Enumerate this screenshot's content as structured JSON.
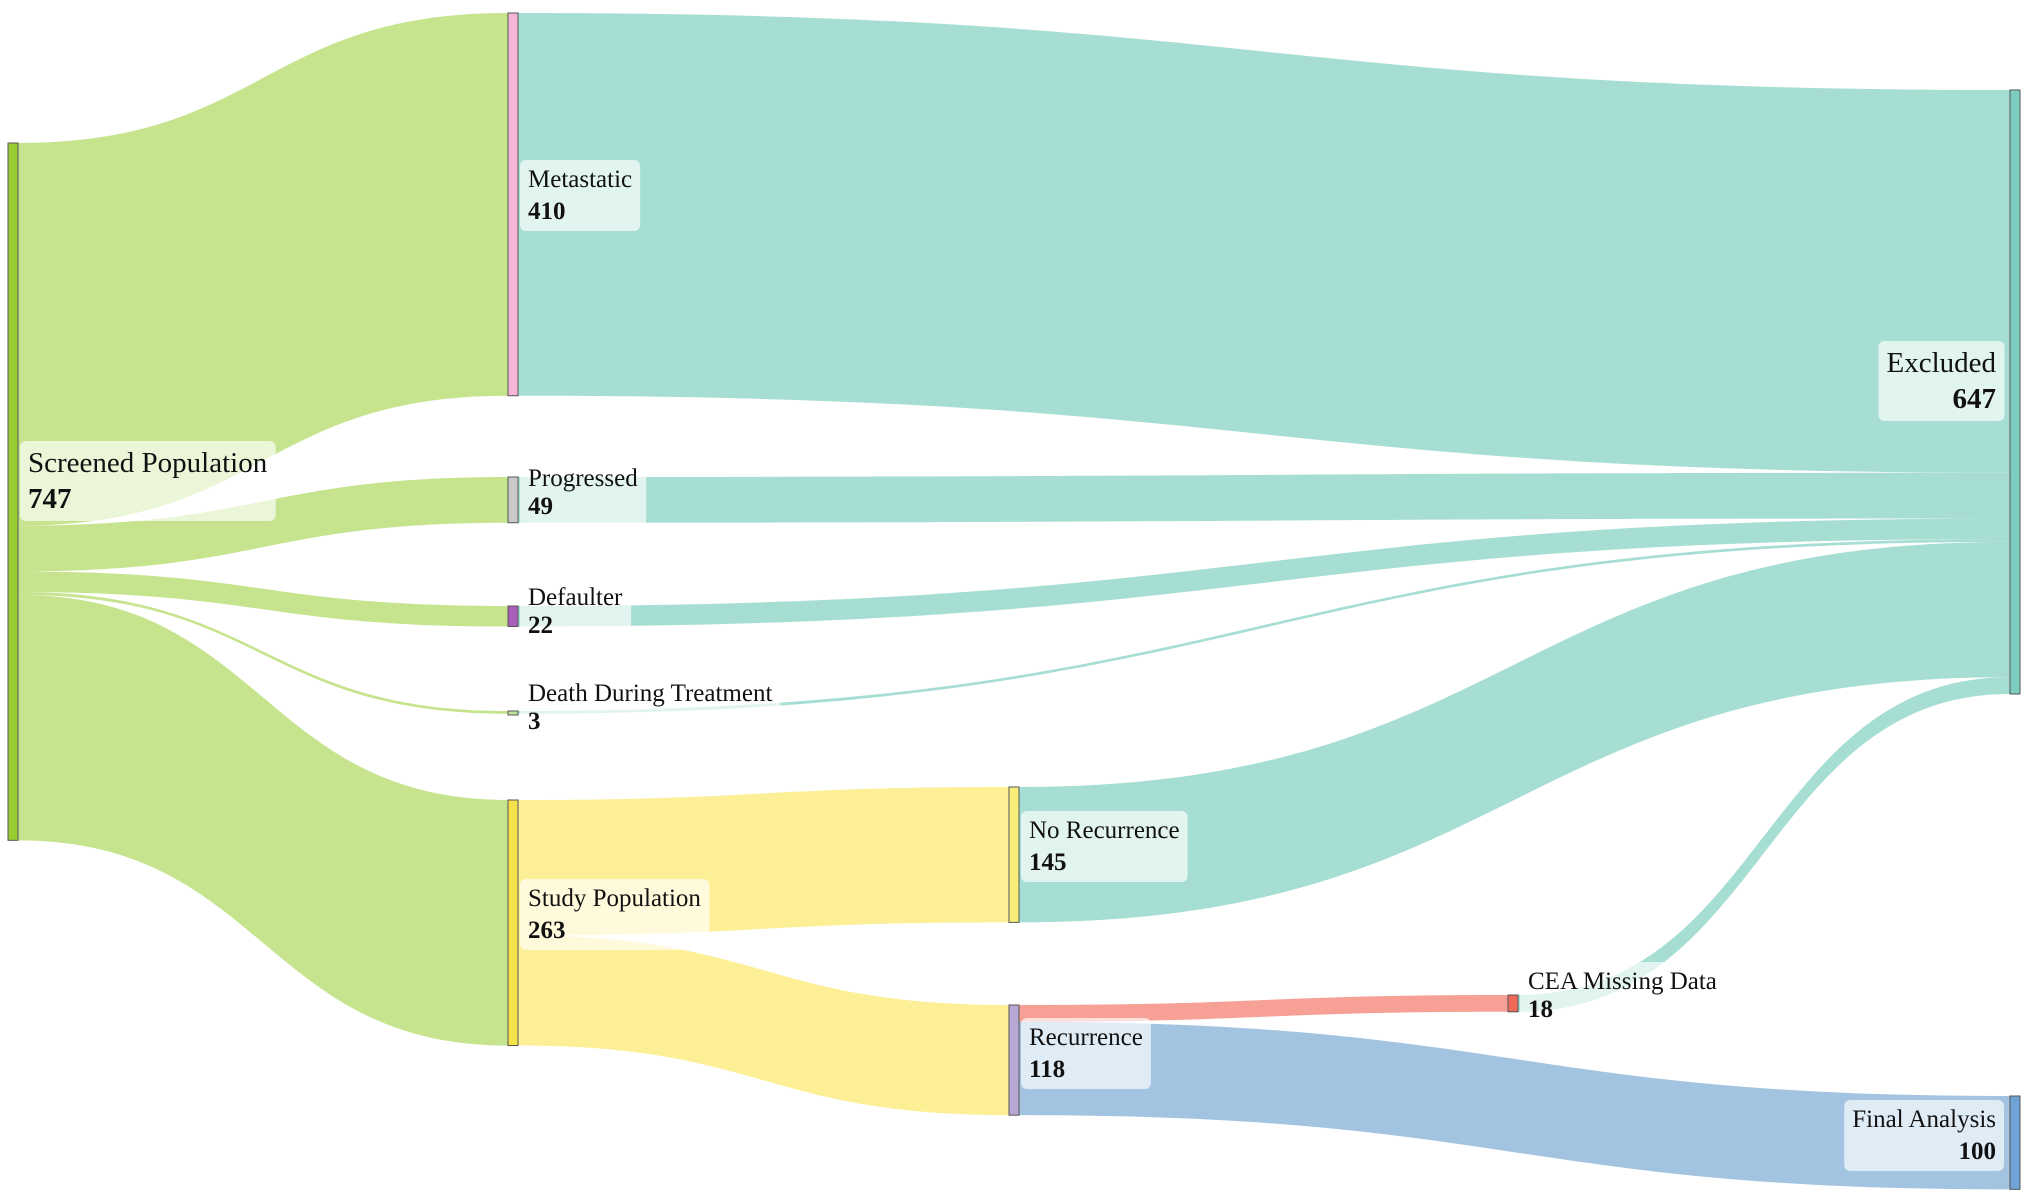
{
  "chart_data": {
    "type": "sankey",
    "nodes": [
      {
        "id": "screened",
        "name": "Screened Population",
        "value": 747,
        "color": "#9acd32"
      },
      {
        "id": "metastatic",
        "name": "Metastatic",
        "value": 410,
        "color": "#f3b6d6"
      },
      {
        "id": "progressed",
        "name": "Progressed",
        "value": 49,
        "color": "#c9c9c9"
      },
      {
        "id": "defaulter",
        "name": "Defaulter",
        "value": 22,
        "color": "#a95fb8"
      },
      {
        "id": "death",
        "name": "Death During Treatment",
        "value": 3,
        "color": "#bfe39a"
      },
      {
        "id": "study",
        "name": "Study Population",
        "value": 263,
        "color": "#f6e24a"
      },
      {
        "id": "no_recurrence",
        "name": "No Recurrence",
        "value": 145,
        "color": "#f9ee7a"
      },
      {
        "id": "recurrence",
        "name": "Recurrence",
        "value": 118,
        "color": "#b7a9d3"
      },
      {
        "id": "cea_missing",
        "name": "CEA Missing Data",
        "value": 18,
        "color": "#f06a5a"
      },
      {
        "id": "excluded",
        "name": "Excluded",
        "value": 647,
        "color": "#7ccfc0"
      },
      {
        "id": "final",
        "name": "Final Analysis",
        "value": 100,
        "color": "#6fa2d6"
      }
    ],
    "links": [
      {
        "source": "screened",
        "target": "metastatic",
        "value": 410,
        "color": "#c5e48d"
      },
      {
        "source": "screened",
        "target": "progressed",
        "value": 49,
        "color": "#c5e48d"
      },
      {
        "source": "screened",
        "target": "defaulter",
        "value": 22,
        "color": "#c5e48d"
      },
      {
        "source": "screened",
        "target": "death",
        "value": 3,
        "color": "#c5e48d"
      },
      {
        "source": "screened",
        "target": "study",
        "value": 263,
        "color": "#c5e48d"
      },
      {
        "source": "metastatic",
        "target": "excluded",
        "value": 410,
        "color": "#a7ded3"
      },
      {
        "source": "progressed",
        "target": "excluded",
        "value": 49,
        "color": "#a7ded3"
      },
      {
        "source": "defaulter",
        "target": "excluded",
        "value": 22,
        "color": "#a7ded3"
      },
      {
        "source": "death",
        "target": "excluded",
        "value": 3,
        "color": "#a7ded3"
      },
      {
        "source": "study",
        "target": "no_recurrence",
        "value": 145,
        "color": "#fdef95"
      },
      {
        "source": "study",
        "target": "recurrence",
        "value": 118,
        "color": "#fdef95"
      },
      {
        "source": "no_recurrence",
        "target": "excluded",
        "value": 145,
        "color": "#a7ded3"
      },
      {
        "source": "recurrence",
        "target": "cea_missing",
        "value": 18,
        "color": "#f6a096"
      },
      {
        "source": "recurrence",
        "target": "final",
        "value": 100,
        "color": "#a2c4e0"
      },
      {
        "source": "cea_missing",
        "target": "excluded",
        "value": 18,
        "color": "#a7ded3"
      }
    ]
  }
}
